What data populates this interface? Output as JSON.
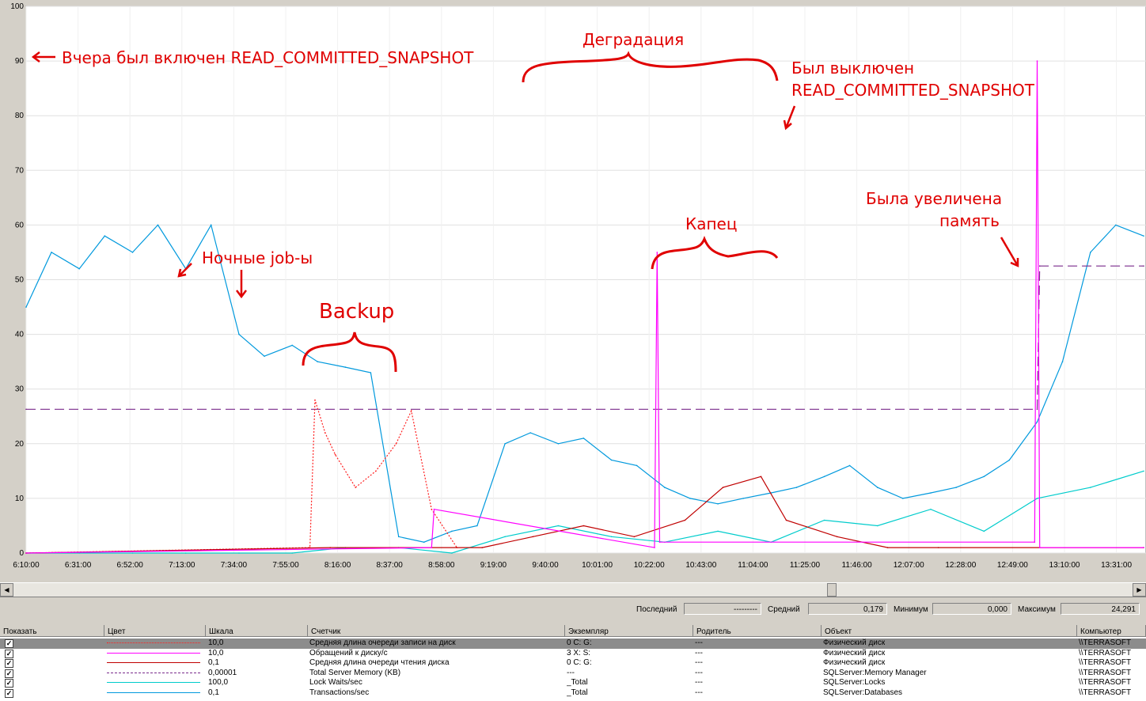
{
  "chart_data": {
    "type": "line",
    "ylim": [
      0,
      100
    ],
    "y_ticks": [
      "0",
      "10",
      "20",
      "30",
      "40",
      "50",
      "60",
      "70",
      "80",
      "90",
      "100"
    ],
    "x_ticks": [
      "6:10:00",
      "6:31:00",
      "6:52:00",
      "7:13:00",
      "7:34:00",
      "7:55:00",
      "8:16:00",
      "8:37:00",
      "8:58:00",
      "9:19:00",
      "9:40:00",
      "10:01:00",
      "10:22:00",
      "10:43:00",
      "11:04:00",
      "11:25:00",
      "11:46:00",
      "12:07:00",
      "12:28:00",
      "12:49:00",
      "13:10:00",
      "13:31:00"
    ],
    "grid": true,
    "series": [
      {
        "name": "Lock Waits/sec",
        "color": "#00cccc",
        "x_min": [
          0,
          21,
          42,
          63,
          84,
          105,
          126,
          147,
          168,
          189,
          210,
          231,
          252,
          273,
          294,
          315,
          336,
          357,
          378,
          399,
          420,
          441
        ],
        "y": [
          0,
          0,
          0,
          0,
          0,
          0,
          1,
          1,
          0,
          3,
          5,
          3,
          2,
          4,
          2,
          6,
          5,
          8,
          4,
          10,
          12,
          15
        ]
      },
      {
        "name": "Transactions/sec",
        "color": "#0099dd",
        "x_min": [
          0,
          10,
          21,
          31,
          42,
          52,
          63,
          73,
          84,
          94,
          105,
          115,
          126,
          136,
          147,
          157,
          168,
          178,
          189,
          199,
          210,
          220,
          231,
          241,
          252,
          262,
          273,
          283,
          294,
          304,
          315,
          325,
          336,
          346,
          357,
          367,
          378,
          388,
          399,
          409,
          420,
          430,
          441
        ],
        "y": [
          45,
          55,
          52,
          58,
          55,
          60,
          52,
          60,
          40,
          36,
          38,
          35,
          34,
          33,
          3,
          2,
          4,
          5,
          20,
          22,
          20,
          21,
          17,
          16,
          12,
          10,
          9,
          10,
          11,
          12,
          14,
          16,
          12,
          10,
          11,
          12,
          14,
          17,
          24,
          35,
          55,
          60,
          58
        ]
      },
      {
        "name": "Total Server Memory (KB)",
        "color": "#7a2a8c",
        "x_min": [
          0,
          399,
          400,
          441
        ],
        "y": [
          26.3,
          26.3,
          52.5,
          52.5
        ]
      },
      {
        "name": "Средняя длина очереди записи на диск",
        "color": "#ff2020",
        "x_min": [
          0,
          112,
          114,
          118,
          122,
          130,
          138,
          146,
          152,
          160,
          170
        ],
        "y": [
          0,
          1,
          28,
          22,
          18,
          12,
          15,
          20,
          26,
          8,
          1
        ]
      },
      {
        "name": "Средняя длина очереди чтения диска",
        "color": "#c00000",
        "x_min": [
          0,
          120,
          180,
          200,
          220,
          240,
          260,
          275,
          290,
          300,
          320,
          340,
          360,
          441
        ],
        "y": [
          0,
          1,
          1,
          3,
          5,
          3,
          6,
          12,
          14,
          6,
          3,
          1,
          1,
          1
        ]
      },
      {
        "name": "Обращений к диску/с",
        "color": "#ff00ff",
        "x_min": [
          0,
          160,
          161,
          248,
          249,
          250,
          398,
          399,
          400,
          441
        ],
        "y": [
          0,
          1,
          8,
          1,
          55,
          2,
          2,
          90,
          1,
          1
        ]
      }
    ],
    "annotations": [
      "Вчера был включен READ_COMMITTED_SNAPSHOT",
      "Ночные job-ы",
      "Backup",
      "Деградация",
      "Был выключен",
      "READ_COMMITTED_SNAPSHOT",
      "Капец",
      "Была увеличена",
      "память"
    ]
  },
  "stats": {
    "last_label": "Последний",
    "last_value": "---------",
    "avg_label": "Средний",
    "avg_value": "0,179",
    "min_label": "Минимум",
    "min_value": "0,000",
    "max_label": "Максимум",
    "max_value": "24,291"
  },
  "legend": {
    "headers": [
      "Показать",
      "Цвет",
      "Шкала",
      "Счетчик",
      "Экземпляр",
      "Родитель",
      "Объект",
      "Компьютер"
    ],
    "rows": [
      {
        "show": "✓",
        "color": "#ff2020",
        "style": "dotted",
        "scale": "10,0",
        "counter": "Средняя длина очереди записи на диск",
        "instance": "0 C: G:",
        "parent": "---",
        "object": "Физический диск",
        "computer": "\\\\TERRASOFT"
      },
      {
        "show": "✓",
        "color": "#ff00ff",
        "style": "solid",
        "scale": "10,0",
        "counter": "Обращений к диску/с",
        "instance": "3 X: S:",
        "parent": "---",
        "object": "Физический диск",
        "computer": "\\\\TERRASOFT"
      },
      {
        "show": "✓",
        "color": "#c00000",
        "style": "solid",
        "scale": "0,1",
        "counter": "Средняя длина очереди чтения диска",
        "instance": "0 C: G:",
        "parent": "---",
        "object": "Физический диск",
        "computer": "\\\\TERRASOFT"
      },
      {
        "show": "✓",
        "color": "#7a2a8c",
        "style": "dashed",
        "scale": "0,00001",
        "counter": "Total Server Memory (KB)",
        "instance": "---",
        "parent": "---",
        "object": "SQLServer:Memory Manager",
        "computer": "\\\\TERRASOFT"
      },
      {
        "show": "✓",
        "color": "#00cccc",
        "style": "solid",
        "scale": "100,0",
        "counter": "Lock Waits/sec",
        "instance": "_Total",
        "parent": "---",
        "object": "SQLServer:Locks",
        "computer": "\\\\TERRASOFT"
      },
      {
        "show": "✓",
        "color": "#0099dd",
        "style": "solid",
        "scale": "0,1",
        "counter": "Transactions/sec",
        "instance": "_Total",
        "parent": "---",
        "object": "SQLServer:Databases",
        "computer": "\\\\TERRASOFT"
      }
    ]
  }
}
